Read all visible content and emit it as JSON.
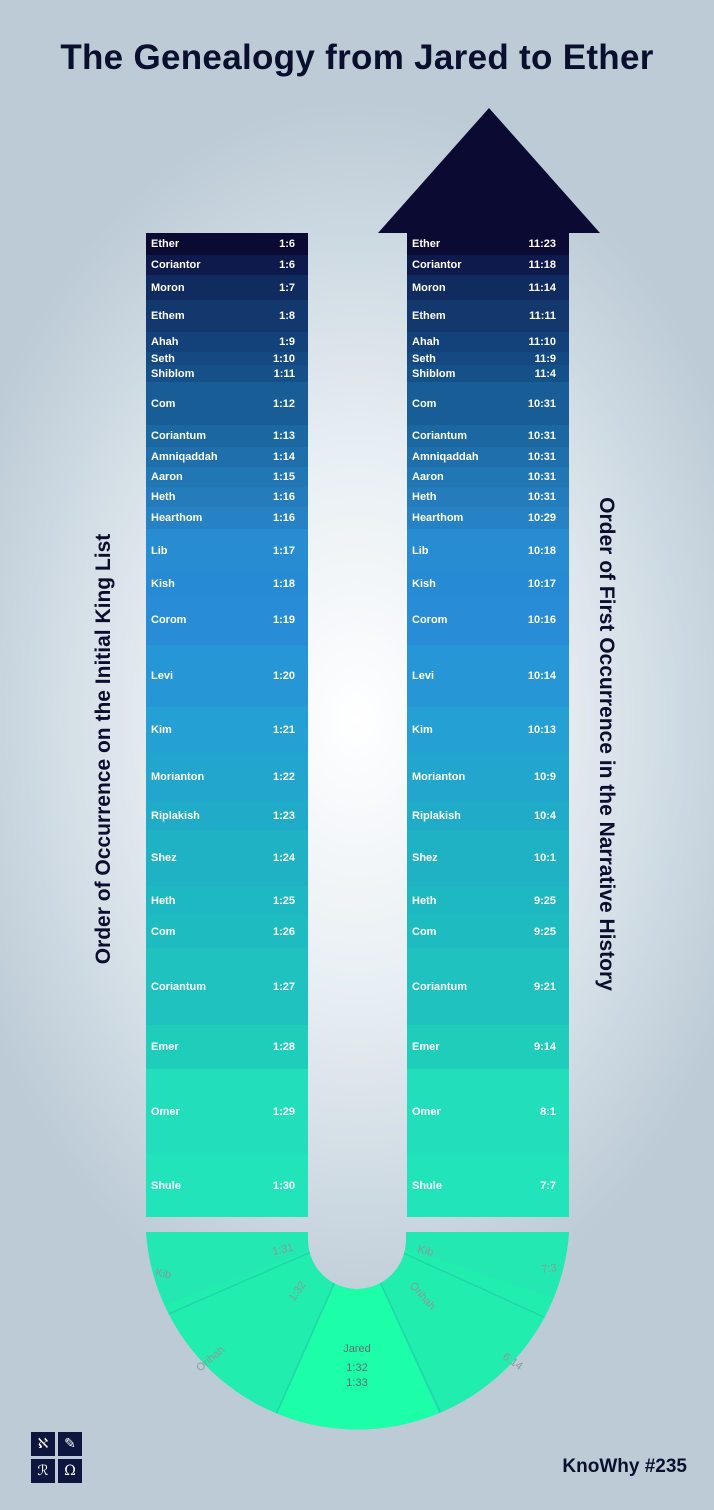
{
  "title": "The Genealogy from Jared to Ether",
  "left_axis_label": "Order of Occurrence on the Initial King List",
  "right_axis_label": "Order of First Occurrence in the Narrative History",
  "footer": {
    "knowhy_label": "KnoWhy #235",
    "logo_icon": "book-of-mormon-central-logo"
  },
  "colors": {
    "dark_navy": "#0a0a33",
    "mid_blue": "#2a80d0",
    "teal": "#20bdb8",
    "mint": "#20ffaa"
  },
  "left_rows": [
    {
      "name": "Ether",
      "ref": "1:6"
    },
    {
      "name": "Coriantor",
      "ref": "1:6"
    },
    {
      "name": "Moron",
      "ref": "1:7"
    },
    {
      "name": "Ethem",
      "ref": "1:8"
    },
    {
      "name": "Ahah",
      "ref": "1:9"
    },
    {
      "name": "Seth",
      "ref": "1:10"
    },
    {
      "name": "Shiblom",
      "ref": "1:11"
    },
    {
      "name": "Com",
      "ref": "1:12"
    },
    {
      "name": "Coriantum",
      "ref": "1:13"
    },
    {
      "name": "Amniqaddah",
      "ref": "1:14"
    },
    {
      "name": "Aaron",
      "ref": "1:15"
    },
    {
      "name": "Heth",
      "ref": "1:16"
    },
    {
      "name": "Hearthom",
      "ref": "1:16"
    },
    {
      "name": "Lib",
      "ref": "1:17"
    },
    {
      "name": "Kish",
      "ref": "1:18"
    },
    {
      "name": "Corom",
      "ref": "1:19"
    },
    {
      "name": "Levi",
      "ref": "1:20"
    },
    {
      "name": "Kim",
      "ref": "1:21"
    },
    {
      "name": "Morianton",
      "ref": "1:22"
    },
    {
      "name": "Riplakish",
      "ref": "1:23"
    },
    {
      "name": "Shez",
      "ref": "1:24"
    },
    {
      "name": "Heth",
      "ref": "1:25"
    },
    {
      "name": "Com",
      "ref": "1:26"
    },
    {
      "name": "Coriantum",
      "ref": "1:27"
    },
    {
      "name": "Emer",
      "ref": "1:28"
    },
    {
      "name": "Omer",
      "ref": "1:29"
    },
    {
      "name": "Shule",
      "ref": "1:30"
    }
  ],
  "right_rows": [
    {
      "name": "Ether",
      "ref": "11:23"
    },
    {
      "name": "Coriantor",
      "ref": "11:18"
    },
    {
      "name": "Moron",
      "ref": "11:14"
    },
    {
      "name": "Ethem",
      "ref": "11:11"
    },
    {
      "name": "Ahah",
      "ref": "11:10"
    },
    {
      "name": "Seth",
      "ref": "11:9"
    },
    {
      "name": "Shiblom",
      "ref": "11:4"
    },
    {
      "name": "Com",
      "ref": "10:31"
    },
    {
      "name": "Coriantum",
      "ref": "10:31"
    },
    {
      "name": "Amniqaddah",
      "ref": "10:31"
    },
    {
      "name": "Aaron",
      "ref": "10:31"
    },
    {
      "name": "Heth",
      "ref": "10:31"
    },
    {
      "name": "Hearthom",
      "ref": "10:29"
    },
    {
      "name": "Lib",
      "ref": "10:18"
    },
    {
      "name": "Kish",
      "ref": "10:17"
    },
    {
      "name": "Corom",
      "ref": "10:16"
    },
    {
      "name": "Levi",
      "ref": "10:14"
    },
    {
      "name": "Kim",
      "ref": "10:13"
    },
    {
      "name": "Morianton",
      "ref": "10:9"
    },
    {
      "name": "Riplakish",
      "ref": "10:4"
    },
    {
      "name": "Shez",
      "ref": "10:1"
    },
    {
      "name": "Heth",
      "ref": "9:25"
    },
    {
      "name": "Com",
      "ref": "9:25"
    },
    {
      "name": "Coriantum",
      "ref": "9:21"
    },
    {
      "name": "Emer",
      "ref": "9:14"
    },
    {
      "name": "Omer",
      "ref": "8:1"
    },
    {
      "name": "Shule",
      "ref": "7:7"
    }
  ],
  "bottom": {
    "left_kib": {
      "name": "Kib",
      "ref": "1:31"
    },
    "left_orihah": {
      "name": "Orihah",
      "ref": "1:32"
    },
    "center_jared": {
      "name": "Jared",
      "refs": [
        "1:32",
        "1:33"
      ]
    },
    "right_orihah": {
      "name": "Orihah",
      "ref": "6:14"
    },
    "right_kib": {
      "name": "Kib",
      "ref": "7:3"
    }
  }
}
